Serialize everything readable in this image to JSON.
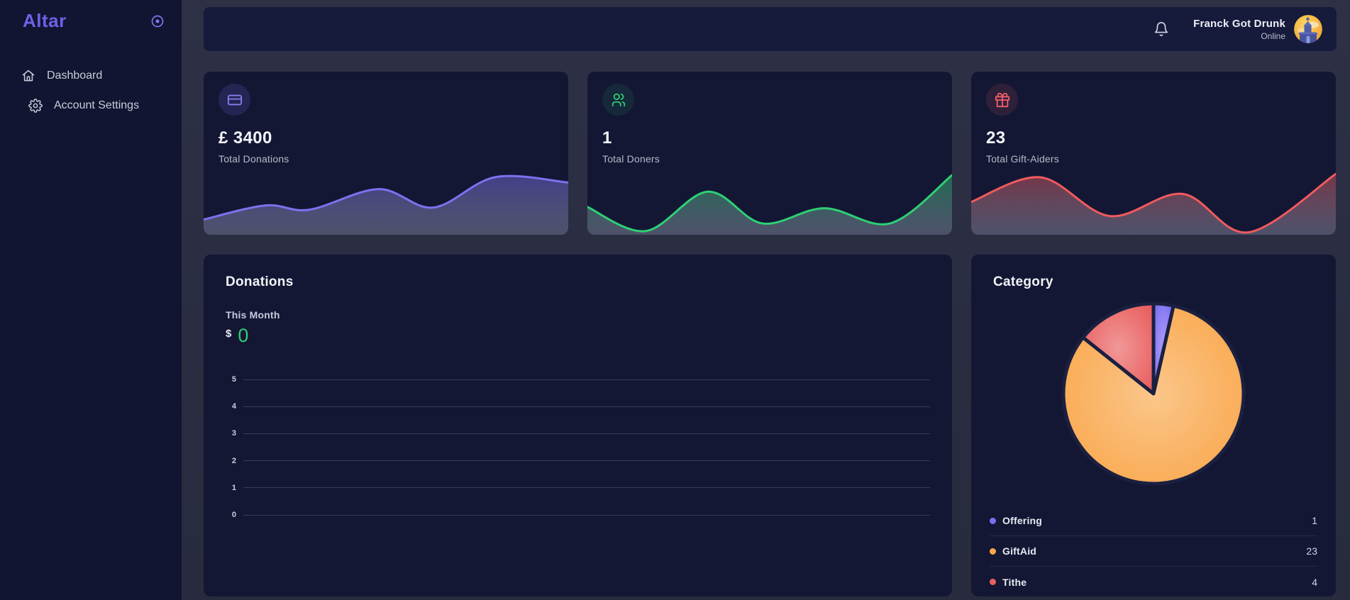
{
  "sidebar": {
    "brand": "Altar",
    "items": [
      {
        "label": "Dashboard",
        "icon": "home-icon"
      },
      {
        "label": "Account Settings",
        "icon": "gear-icon"
      }
    ]
  },
  "header": {
    "user": {
      "name": "Franck Got Drunk",
      "status": "Online"
    }
  },
  "stat_cards": [
    {
      "value": "£ 3400",
      "label": "Total Donations",
      "accent": "#8b7cf4",
      "icon": "credit-card-icon"
    },
    {
      "value": "1",
      "label": "Total Doners",
      "accent": "#2ecc71",
      "icon": "users-icon"
    },
    {
      "value": "23",
      "label": "Total Gift-Aiders",
      "accent": "#ed5e68",
      "icon": "gift-icon"
    }
  ],
  "donations_panel": {
    "title": "Donations",
    "period": "This Month",
    "currency": "$",
    "amount": "0"
  },
  "category_panel": {
    "title": "Category"
  },
  "chart_data": [
    {
      "id": "total-donations-sparkline",
      "type": "area",
      "color": "#7e71ee",
      "points": [
        [
          0,
          23
        ],
        [
          17,
          16.5
        ],
        [
          29,
          18.5
        ],
        [
          48,
          9
        ],
        [
          63,
          17.5
        ],
        [
          80,
          3.5
        ],
        [
          100,
          6
        ]
      ]
    },
    {
      "id": "total-doners-sparkline",
      "type": "area",
      "color": "#2fcf75",
      "points": [
        [
          0,
          17.2
        ],
        [
          16,
          28.3
        ],
        [
          33,
          10.2
        ],
        [
          48,
          24.8
        ],
        [
          65,
          17.8
        ],
        [
          83,
          24.8
        ],
        [
          100,
          2.6
        ]
      ]
    },
    {
      "id": "total-giftaiders-sparkline",
      "type": "area",
      "color": "#f05a5e",
      "points": [
        [
          0,
          14.9
        ],
        [
          19,
          3.6
        ],
        [
          38,
          21.4
        ],
        [
          58,
          11.2
        ],
        [
          76,
          28.9
        ],
        [
          100,
          2
        ]
      ]
    },
    {
      "id": "donations-this-month",
      "type": "line",
      "title": "Donations",
      "subtitle": "This Month",
      "yticks": [
        5,
        4,
        3,
        2,
        1,
        0
      ],
      "ylim": [
        0,
        5
      ],
      "grid": true,
      "series": []
    },
    {
      "id": "category-pie",
      "type": "pie",
      "title": "Category",
      "labels": [
        "Offering",
        "GiftAid",
        "Tithe"
      ],
      "values": [
        1,
        23,
        4
      ],
      "colors": [
        "#7d6df2",
        "#f9a84d",
        "#e96060"
      ],
      "start_angle_deg": 0,
      "direction": "clockwise",
      "legend_position": "bottom"
    }
  ]
}
